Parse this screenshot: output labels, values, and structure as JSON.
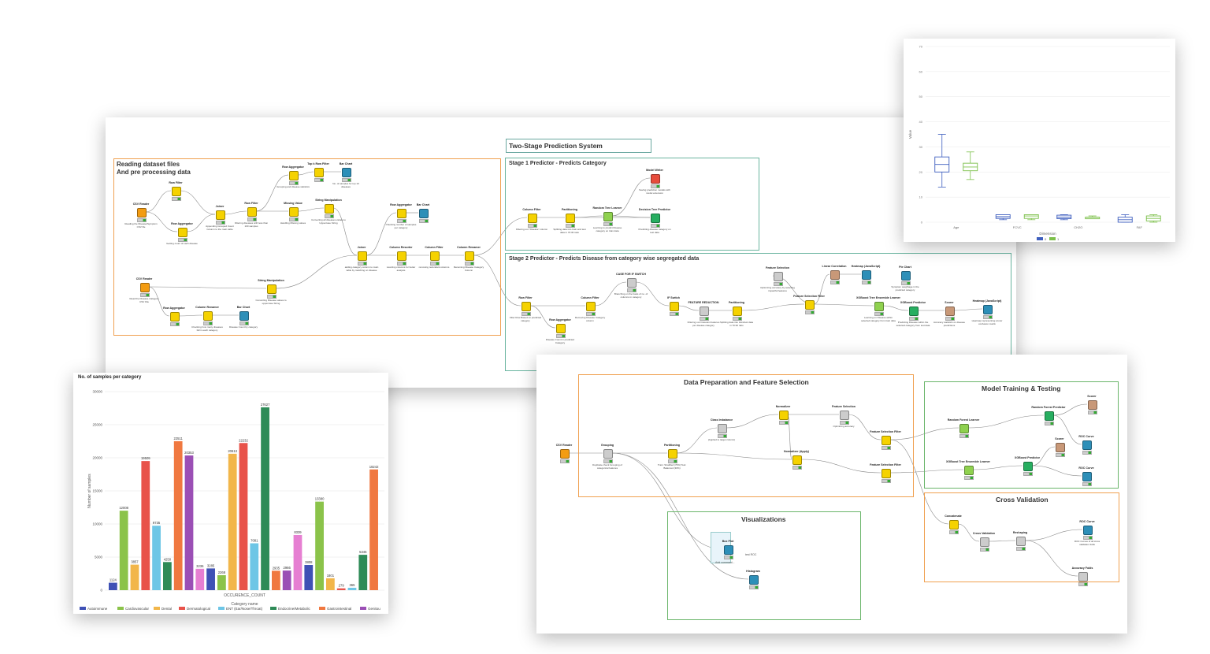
{
  "panel1": {
    "title": "Two-Stage Prediction System",
    "sections": {
      "reading": "Reading dataset files\nAnd pre processing data",
      "stage1": "Stage 1 Predictor - Predicts Category",
      "stage2": "Stage 2 Predictor - Predicts Disease from category wise segregated data"
    },
    "nodes": [
      {
        "title": "CSV Reader",
        "desc": "Reading the Disease/Symptom CSV file",
        "color": "#f39c12"
      },
      {
        "title": "Row Filter",
        "desc": "",
        "color": "#f5d200"
      },
      {
        "title": "Row Aggregator",
        "desc": "Getting count of each disease",
        "color": "#f5d200"
      },
      {
        "title": "Joiner",
        "desc": "Appending Grouped Count Column to the main table",
        "color": "#f5d200"
      },
      {
        "title": "Row Filter",
        "desc": "Filtering diseases with less than 100 samples",
        "color": "#f5d200"
      },
      {
        "title": "Row Aggregator",
        "desc": "Grouping and disease statistics",
        "color": "#f5d200"
      },
      {
        "title": "Missing Value",
        "desc": "Handling Missing values",
        "color": "#f5d200"
      },
      {
        "title": "Top k Row Filter",
        "desc": "",
        "color": "#f5d200"
      },
      {
        "title": "Bar Chart",
        "desc": "No. of samples for top 10 diseases",
        "color": "#2d8fb8"
      },
      {
        "title": "String Manipulation",
        "desc": "Converting all diseases values to Uppercase String",
        "color": "#f5d200"
      },
      {
        "title": "Row Aggregator",
        "desc": "Checking number of samples per category",
        "color": "#f5d200"
      },
      {
        "title": "Bar Chart",
        "desc": "",
        "color": "#2d8fb8"
      },
      {
        "title": "CSV Reader",
        "desc": "Read the Disease-Category CSV File",
        "color": "#f39c12"
      },
      {
        "title": "String Manipulation",
        "desc": "Converting Disease values to uppercase String",
        "color": "#f5d200"
      },
      {
        "title": "Row Aggregator",
        "desc": "",
        "color": "#f5d200"
      },
      {
        "title": "Column Renamer",
        "desc": "Checking how many diseases fall in each category",
        "color": "#f5d200"
      },
      {
        "title": "Bar Chart",
        "desc": "Disease Count by category",
        "color": "#2d8fb8"
      },
      {
        "title": "Joiner",
        "desc": "adding category column to main table by matching on disease",
        "color": "#f5d200"
      },
      {
        "title": "Column Resorter",
        "desc": "resorting columns for better analysis",
        "color": "#f5d200"
      },
      {
        "title": "Column Filter",
        "desc": "removing redundant columns",
        "color": "#f5d200"
      },
      {
        "title": "Column Renamer",
        "desc": "Renaming Disease Category Column",
        "color": "#f5d200"
      },
      {
        "title": "Column Filter",
        "desc": "Filtering out \"Disease\" column",
        "color": "#f5d200"
      },
      {
        "title": "Partitioning",
        "desc": "Splitting data into train and test data in 70:30 ratio",
        "color": "#f5d200"
      },
      {
        "title": "Random Tree Learner",
        "desc": "Learning to predict Disease category on train data",
        "color": "#8fd14f"
      },
      {
        "title": "Model Writer",
        "desc": "Saving prediction models with model extension",
        "color": "#e74c3c"
      },
      {
        "title": "Decision Tree Predictor",
        "desc": "Predicting disease category on test data",
        "color": "#27ae60"
      },
      {
        "title": "Row Filter",
        "desc": "Filter Row Based on predicted category",
        "color": "#f5d200"
      },
      {
        "title": "Row Aggregator",
        "desc": "Disease Count in predicted Category",
        "color": "#f5d200"
      },
      {
        "title": "Column Filter",
        "desc": "Removing Disease Category column",
        "color": "#f5d200"
      },
      {
        "title": "CASE FOR IF SWITCH",
        "desc": "Branching on the basis of no. of columns in category",
        "color": "#cccccc"
      },
      {
        "title": "IF Switch",
        "desc": "",
        "color": "#f5d200"
      },
      {
        "title": "FEATURE REDUCTION",
        "desc": "Filtering out Irrelevant features per disease category",
        "color": "#cccccc"
      },
      {
        "title": "Partitioning",
        "desc": "Splitting data into train/test data in 70:30 ratio",
        "color": "#f5d200"
      },
      {
        "title": "Feature Selection",
        "desc": "Optimizing accuracy by selecting impactful features",
        "color": "#cccccc"
      },
      {
        "title": "Feature Selection Filter",
        "desc": "",
        "color": "#f5d200"
      },
      {
        "title": "Linear Correlation",
        "desc": "",
        "color": "#c89878"
      },
      {
        "title": "Heatmap (JavaScript)",
        "desc": "",
        "color": "#2d8fb8"
      },
      {
        "title": "Pie Chart",
        "desc": "Symptom weightage in the predicted category",
        "color": "#2d8fb8"
      },
      {
        "title": "XGBoost Tree Ensemble Learner",
        "desc": "Learning on Disease within selected category from train data",
        "color": "#8fd14f"
      },
      {
        "title": "XGBoost Predictor",
        "desc": "Predicting Disease within the selected category from test data",
        "color": "#27ae60"
      },
      {
        "title": "Scorer",
        "desc": "Accuracy statistics on disease predictions",
        "color": "#c89878"
      },
      {
        "title": "Heatmap (JavaScript)",
        "desc": "Heatmap representing scorer confusion matrix",
        "color": "#2d8fb8"
      }
    ]
  },
  "panel2": {
    "sections": {
      "prep": "Data Preparation and Feature Selection",
      "train": "Model Training & Testing",
      "vis": "Visualizations",
      "cv": "Cross Validation"
    },
    "nodes": [
      {
        "title": "CSV Reader",
        "desc": "",
        "color": "#f39c12"
      },
      {
        "title": "Grouping",
        "desc": "Duplicate check Grouping of categorical features",
        "color": "#cccccc"
      },
      {
        "title": "Partitioning",
        "desc": "Train: Stratified (70%) Test: Balanced (30%)",
        "color": "#f5d200"
      },
      {
        "title": "Class Imbalance",
        "desc": "(Applied to target column)",
        "color": "#cccccc"
      },
      {
        "title": "Normalizer",
        "desc": "",
        "color": "#f5d200"
      },
      {
        "title": "Feature Selection",
        "desc": "Optimizing accuracy",
        "color": "#cccccc"
      },
      {
        "title": "Normalizer (Apply)",
        "desc": "",
        "color": "#f5d200"
      },
      {
        "title": "Feature Selection Filter",
        "desc": "",
        "color": "#f5d200"
      },
      {
        "title": "Feature Selection Filter",
        "desc": "",
        "color": "#f5d200"
      },
      {
        "title": "Random Forest Learner",
        "desc": "",
        "color": "#8fd14f"
      },
      {
        "title": "Random Forest Predictor",
        "desc": "",
        "color": "#27ae60"
      },
      {
        "title": "Scorer",
        "desc": "",
        "color": "#c89878"
      },
      {
        "title": "ROC Curve",
        "desc": "",
        "color": "#2d8fb8"
      },
      {
        "title": "XGBoost Tree Ensemble Learner",
        "desc": "",
        "color": "#8fd14f"
      },
      {
        "title": "XGBoost Predictor",
        "desc": "",
        "color": "#27ae60"
      },
      {
        "title": "Scorer",
        "desc": "",
        "color": "#c89878"
      },
      {
        "title": "ROC Curve",
        "desc": "",
        "color": "#2d8fb8"
      },
      {
        "title": "Box Plot",
        "desc": "",
        "color": "#2d8fb8"
      },
      {
        "title": "Histogram",
        "desc": "",
        "color": "#2d8fb8"
      },
      {
        "title": "Concatenate",
        "desc": "",
        "color": "#f5d200"
      },
      {
        "title": "Cross Validation",
        "desc": "",
        "color": "#cccccc"
      },
      {
        "title": "Reshaping",
        "desc": "",
        "color": "#cccccc"
      },
      {
        "title": "ROC Curve",
        "desc": "ROC Curves of all cross validation folds",
        "color": "#2d8fb8"
      },
      {
        "title": "Accuracy Folds",
        "desc": "",
        "color": "#cccccc"
      }
    ],
    "vis_extra": [
      "Add comment...",
      "test ROC"
    ]
  },
  "barchart": {
    "title": "No. of samples per category",
    "ylabel": "Number of samples",
    "xlabel1": "OCCURENCE_COUNT",
    "xlabel2": "Category name",
    "yticks": [
      "30000",
      "25000",
      "20000",
      "15000",
      "10000",
      "5000",
      "0"
    ],
    "legend": [
      {
        "name": "Autoimmune",
        "color": "#3f51b5"
      },
      {
        "name": "Cardiovascular",
        "color": "#8bc34a"
      },
      {
        "name": "Dental",
        "color": "#f2b64a"
      },
      {
        "name": "Dermatological",
        "color": "#e8534a"
      },
      {
        "name": "ENT (Ear/Nose/Throat)",
        "color": "#6ec6e6"
      },
      {
        "name": "Endocrine/Metabolic",
        "color": "#2e8b57"
      },
      {
        "name": "Gastrointestinal",
        "color": "#f07840"
      },
      {
        "name": "Genitou",
        "color": "#9b4fb5"
      }
    ]
  },
  "chart_data": {
    "type": "bar",
    "title": "No. of samples per category",
    "ylabel": "Number of samples",
    "xlabel": "Category name",
    "ylim": [
      0,
      30000
    ],
    "grid": true,
    "legend": "bottom",
    "bars": [
      {
        "label": "1124",
        "value": 1124,
        "color": "#3f51b5"
      },
      {
        "label": "12008",
        "value": 12008,
        "color": "#8bc34a"
      },
      {
        "label": "3857",
        "value": 3857,
        "color": "#f2b64a"
      },
      {
        "label": "19509",
        "value": 19509,
        "color": "#e8534a"
      },
      {
        "label": "9735",
        "value": 9735,
        "color": "#6ec6e6"
      },
      {
        "label": "4250",
        "value": 4250,
        "color": "#2e8b57"
      },
      {
        "label": "22511",
        "value": 22511,
        "color": "#f07840"
      },
      {
        "label": "20353",
        "value": 20353,
        "color": "#9b4fb5"
      },
      {
        "label": "3236",
        "value": 3236,
        "color": "#e67fd2"
      },
      {
        "label": "3285",
        "value": 3285,
        "color": "#3f51b5"
      },
      {
        "label": "2268",
        "value": 2268,
        "color": "#8bc34a"
      },
      {
        "label": "20613",
        "value": 20613,
        "color": "#f2b64a"
      },
      {
        "label": "22232",
        "value": 22232,
        "color": "#e8534a"
      },
      {
        "label": "7081",
        "value": 7081,
        "color": "#6ec6e6"
      },
      {
        "label": "27627",
        "value": 27627,
        "color": "#2e8b57"
      },
      {
        "label": "2935",
        "value": 2935,
        "color": "#f07840"
      },
      {
        "label": "2966",
        "value": 2966,
        "color": "#9b4fb5"
      },
      {
        "label": "8339",
        "value": 8339,
        "color": "#e67fd2"
      },
      {
        "label": "3808",
        "value": 3808,
        "color": "#3f51b5"
      },
      {
        "label": "13380",
        "value": 13380,
        "color": "#8bc34a"
      },
      {
        "label": "1801",
        "value": 1801,
        "color": "#f2b64a"
      },
      {
        "label": "279",
        "value": 279,
        "color": "#e8534a"
      },
      {
        "label": "365",
        "value": 365,
        "color": "#6ec6e6"
      },
      {
        "label": "5345",
        "value": 5345,
        "color": "#2e8b57"
      },
      {
        "label": "18242",
        "value": 18242,
        "color": "#f07840"
      }
    ]
  },
  "boxplot": {
    "ylabel": "Value",
    "xlabel": "Dimension",
    "yticks": [
      "70",
      "60",
      "50",
      "40",
      "30",
      "20",
      "10",
      "0"
    ],
    "categories": [
      "Age",
      "FCVC",
      "CH2O",
      "FAF"
    ],
    "legend": [
      "0",
      "1"
    ],
    "colors": [
      "#3f5fbf",
      "#7cc04a"
    ],
    "boxes": [
      {
        "cat": 0,
        "series": 0,
        "min": 14,
        "q1": 20,
        "med": 23,
        "q3": 26,
        "max": 35
      },
      {
        "cat": 0,
        "series": 1,
        "min": 17,
        "q1": 20.5,
        "med": 22,
        "q3": 23.5,
        "max": 28
      },
      {
        "cat": 1,
        "series": 0,
        "min": 1,
        "q1": 1.5,
        "med": 2.2,
        "q3": 3,
        "max": 3
      },
      {
        "cat": 1,
        "series": 1,
        "min": 1,
        "q1": 1.5,
        "med": 2.5,
        "q3": 3,
        "max": 3
      },
      {
        "cat": 2,
        "series": 0,
        "min": 1,
        "q1": 1.4,
        "med": 2,
        "q3": 2.8,
        "max": 3
      },
      {
        "cat": 2,
        "series": 1,
        "min": 1.5,
        "q1": 2,
        "med": 2,
        "q3": 2,
        "max": 2.5
      },
      {
        "cat": 3,
        "series": 0,
        "min": 0,
        "q1": 0,
        "med": 1,
        "q3": 2,
        "max": 3
      },
      {
        "cat": 3,
        "series": 1,
        "min": 0,
        "q1": 0.5,
        "med": 1.5,
        "q3": 2.5,
        "max": 3
      }
    ]
  }
}
